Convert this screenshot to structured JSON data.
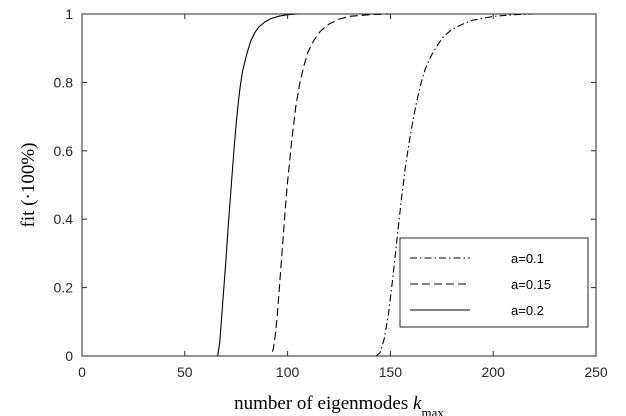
{
  "chart_data": {
    "type": "line",
    "title": "",
    "xlabel_text": "number of eigenmodes ",
    "xlabel_math": "k",
    "xlabel_sub": "max",
    "ylabel_prefix": "fit (",
    "ylabel_dot": "·",
    "ylabel_suffix": "100%)",
    "xlim": [
      0,
      250
    ],
    "ylim": [
      0,
      1
    ],
    "xticks": [
      "0",
      "50",
      "100",
      "150",
      "200",
      "250"
    ],
    "yticks": [
      "0",
      "0.2",
      "0.4",
      "0.6",
      "0.8",
      "1"
    ],
    "grid": false,
    "legend_position": "lower-right",
    "series": [
      {
        "name": "a=0.1",
        "style": "dashdot",
        "color": "#000000",
        "points": [
          [
            30,
            0
          ],
          [
            143,
            0
          ],
          [
            145,
            0.01
          ],
          [
            147,
            0.05
          ],
          [
            149,
            0.12
          ],
          [
            151,
            0.22
          ],
          [
            153,
            0.33
          ],
          [
            155,
            0.44
          ],
          [
            157,
            0.54
          ],
          [
            159,
            0.62
          ],
          [
            161,
            0.69
          ],
          [
            163,
            0.75
          ],
          [
            165,
            0.8
          ],
          [
            167,
            0.84
          ],
          [
            170,
            0.88
          ],
          [
            173,
            0.91
          ],
          [
            176,
            0.935
          ],
          [
            180,
            0.955
          ],
          [
            185,
            0.97
          ],
          [
            190,
            0.982
          ],
          [
            200,
            0.993
          ],
          [
            210,
            0.998
          ],
          [
            220,
            1.0
          ],
          [
            250,
            1.0
          ]
        ]
      },
      {
        "name": "a=0.15",
        "style": "dashed",
        "color": "#000000",
        "points": [
          [
            30,
            0
          ],
          [
            92,
            0
          ],
          [
            93,
            0.02
          ],
          [
            94,
            0.06
          ],
          [
            95,
            0.12
          ],
          [
            96,
            0.2
          ],
          [
            97,
            0.28
          ],
          [
            98,
            0.36
          ],
          [
            99,
            0.44
          ],
          [
            100,
            0.51
          ],
          [
            101,
            0.57
          ],
          [
            102,
            0.63
          ],
          [
            103,
            0.68
          ],
          [
            104,
            0.73
          ],
          [
            106,
            0.8
          ],
          [
            108,
            0.85
          ],
          [
            110,
            0.89
          ],
          [
            113,
            0.925
          ],
          [
            116,
            0.95
          ],
          [
            120,
            0.97
          ],
          [
            125,
            0.985
          ],
          [
            130,
            0.993
          ],
          [
            140,
            0.998
          ],
          [
            150,
            1.0
          ],
          [
            250,
            1.0
          ]
        ]
      },
      {
        "name": "a=0.2",
        "style": "solid",
        "color": "#000000",
        "points": [
          [
            30,
            0
          ],
          [
            66,
            0
          ],
          [
            67,
            0.04
          ],
          [
            68,
            0.12
          ],
          [
            69,
            0.2
          ],
          [
            70,
            0.28
          ],
          [
            71,
            0.37
          ],
          [
            72,
            0.45
          ],
          [
            73,
            0.53
          ],
          [
            74,
            0.61
          ],
          [
            75,
            0.68
          ],
          [
            76,
            0.74
          ],
          [
            77,
            0.79
          ],
          [
            78,
            0.83
          ],
          [
            80,
            0.88
          ],
          [
            82,
            0.92
          ],
          [
            84,
            0.945
          ],
          [
            86,
            0.962
          ],
          [
            89,
            0.977
          ],
          [
            92,
            0.987
          ],
          [
            96,
            0.994
          ],
          [
            100,
            0.998
          ],
          [
            105,
            1.0
          ],
          [
            250,
            1.0
          ]
        ]
      }
    ]
  }
}
